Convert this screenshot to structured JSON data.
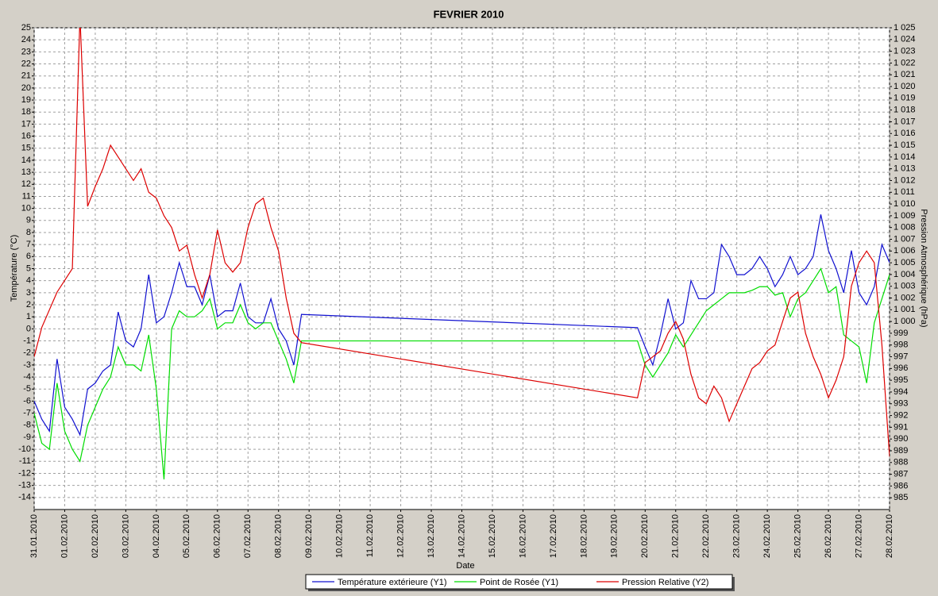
{
  "chart_data": {
    "type": "line",
    "title": "FEVRIER  2010",
    "xlabel": "Date",
    "ylabel": "Température (°C)",
    "y2label": "Pression Atmosphérique (hPa)",
    "x": [
      "2010-01-31 00:00",
      "2010-01-31 06:00",
      "2010-01-31 12:00",
      "2010-01-31 18:00",
      "2010-02-01 00:00",
      "2010-02-01 06:00",
      "2010-02-01 12:00",
      "2010-02-01 18:00",
      "2010-02-02 00:00",
      "2010-02-02 06:00",
      "2010-02-02 12:00",
      "2010-02-02 18:00",
      "2010-02-03 00:00",
      "2010-02-03 06:00",
      "2010-02-03 12:00",
      "2010-02-03 18:00",
      "2010-02-04 00:00",
      "2010-02-04 06:00",
      "2010-02-04 12:00",
      "2010-02-04 18:00",
      "2010-02-05 00:00",
      "2010-02-05 06:00",
      "2010-02-05 12:00",
      "2010-02-05 18:00",
      "2010-02-06 00:00",
      "2010-02-06 06:00",
      "2010-02-06 12:00",
      "2010-02-06 18:00",
      "2010-02-07 00:00",
      "2010-02-07 06:00",
      "2010-02-07 12:00",
      "2010-02-07 18:00",
      "2010-02-08 00:00",
      "2010-02-08 06:00",
      "2010-02-08 12:00",
      "2010-02-08 18:00",
      "2010-02-19 18:00",
      "2010-02-20 00:00",
      "2010-02-20 06:00",
      "2010-02-20 12:00",
      "2010-02-20 18:00",
      "2010-02-21 00:00",
      "2010-02-21 06:00",
      "2010-02-21 12:00",
      "2010-02-21 18:00",
      "2010-02-22 00:00",
      "2010-02-22 06:00",
      "2010-02-22 12:00",
      "2010-02-22 18:00",
      "2010-02-23 00:00",
      "2010-02-23 06:00",
      "2010-02-23 12:00",
      "2010-02-23 18:00",
      "2010-02-24 00:00",
      "2010-02-24 06:00",
      "2010-02-24 12:00",
      "2010-02-24 18:00",
      "2010-02-25 00:00",
      "2010-02-25 06:00",
      "2010-02-25 12:00",
      "2010-02-25 18:00",
      "2010-02-26 00:00",
      "2010-02-26 06:00",
      "2010-02-26 12:00",
      "2010-02-26 18:00",
      "2010-02-27 00:00",
      "2010-02-27 06:00",
      "2010-02-27 12:00",
      "2010-02-27 18:00",
      "2010-02-28 00:00"
    ],
    "series": [
      {
        "name": "Température extérieure (Y1)",
        "color": "#1010d0",
        "values": [
          -6,
          -7.5,
          -8.5,
          -2.5,
          -6.5,
          -7.5,
          -8.8,
          -5,
          -4.5,
          -3.5,
          -3,
          1.4,
          -1,
          -1.5,
          0,
          4.5,
          0.5,
          1,
          3,
          5.5,
          3.5,
          3.5,
          2,
          4.5,
          1,
          1.5,
          1.5,
          3.8,
          1,
          0.5,
          0.5,
          2.5,
          0,
          -1,
          -3,
          1.2,
          0.1,
          -1.5,
          -3,
          -0.5,
          2.5,
          0,
          0.5,
          4,
          2.5,
          2.5,
          3,
          7,
          6,
          4.5,
          4.5,
          5,
          6,
          5,
          3.5,
          4.5,
          6,
          4.5,
          5,
          6,
          9.5,
          6.5,
          5,
          3,
          6.5,
          3,
          2,
          3.5,
          7,
          5.5
        ]
      },
      {
        "name": "Point de Rosée (Y1)",
        "color": "#00dd00",
        "values": [
          -7,
          -9.5,
          -10,
          -4.5,
          -8.5,
          -10,
          -11,
          -8,
          -6.5,
          -5,
          -4,
          -1.5,
          -3,
          -3,
          -3.5,
          -0.5,
          -5,
          -12.5,
          0,
          1.5,
          1,
          1,
          1.5,
          2.5,
          0,
          0.5,
          0.5,
          2,
          0.5,
          0,
          0.5,
          0.5,
          -1,
          -2.5,
          -4.5,
          -1,
          -1,
          -3,
          -4,
          -3,
          -2,
          -0.5,
          -1.5,
          -0.5,
          0.5,
          1.5,
          2,
          2.5,
          3,
          3,
          3,
          3.2,
          3.5,
          3.5,
          2.8,
          3,
          1,
          2.5,
          3,
          4,
          5,
          3,
          3.5,
          -0.5,
          -1,
          -1.5,
          -4.5,
          0.5,
          2.5,
          4.5
        ]
      },
      {
        "name": "Pression Relative (Y2)",
        "color": "#dd0000",
        "axis": "y2",
        "values": [
          997,
          999.5,
          1001,
          1002.5,
          1003.5,
          1004.5,
          1026,
          1009.8,
          1011.5,
          1013,
          1015,
          1014,
          1013,
          1012,
          1013,
          1011,
          1010.5,
          1009,
          1008,
          1006,
          1006.5,
          1004,
          1002,
          1004,
          1007.8,
          1005,
          1004.2,
          1005,
          1008,
          1010,
          1010.5,
          1008,
          1006,
          1002,
          999,
          998.2,
          993.5,
          996.5,
          997,
          997.5,
          999,
          1000,
          998.5,
          995.5,
          993.5,
          993,
          994.5,
          993.5,
          991.5,
          993,
          994.5,
          996,
          996.5,
          997.5,
          998,
          1000,
          1002,
          1002.5,
          999,
          997,
          995.5,
          993.5,
          995,
          997,
          1003,
          1005,
          1006,
          1005,
          998,
          988.5
        ]
      }
    ],
    "xlim": [
      "2010-01-31",
      "2010-02-28"
    ],
    "xticks": [
      {
        "value": "2010-01-31",
        "label": "31.01.2010"
      },
      {
        "value": "2010-02-01",
        "label": "01.02.2010"
      },
      {
        "value": "2010-02-02",
        "label": "02.02.2010"
      },
      {
        "value": "2010-02-03",
        "label": "03.02.2010"
      },
      {
        "value": "2010-02-04",
        "label": "04.02.2010"
      },
      {
        "value": "2010-02-05",
        "label": "05.02.2010"
      },
      {
        "value": "2010-02-06",
        "label": "06.02.2010"
      },
      {
        "value": "2010-02-07",
        "label": "07.02.2010"
      },
      {
        "value": "2010-02-08",
        "label": "08.02.2010"
      },
      {
        "value": "2010-02-09",
        "label": "09.02.2010"
      },
      {
        "value": "2010-02-10",
        "label": "10.02.2010"
      },
      {
        "value": "2010-02-11",
        "label": "11.02.2010"
      },
      {
        "value": "2010-02-12",
        "label": "12.02.2010"
      },
      {
        "value": "2010-02-13",
        "label": "13.02.2010"
      },
      {
        "value": "2010-02-14",
        "label": "14.02.2010"
      },
      {
        "value": "2010-02-15",
        "label": "15.02.2010"
      },
      {
        "value": "2010-02-16",
        "label": "16.02.2010"
      },
      {
        "value": "2010-02-17",
        "label": "17.02.2010"
      },
      {
        "value": "2010-02-18",
        "label": "18.02.2010"
      },
      {
        "value": "2010-02-19",
        "label": "19.02.2010"
      },
      {
        "value": "2010-02-20",
        "label": "20.02.2010"
      },
      {
        "value": "2010-02-21",
        "label": "21.02.2010"
      },
      {
        "value": "2010-02-22",
        "label": "22.02.2010"
      },
      {
        "value": "2010-02-23",
        "label": "23.02.2010"
      },
      {
        "value": "2010-02-24",
        "label": "24.02.2010"
      },
      {
        "value": "2010-02-25",
        "label": "25.02.2010"
      },
      {
        "value": "2010-02-26",
        "label": "26.02.2010"
      },
      {
        "value": "2010-02-27",
        "label": "27.02.2010"
      },
      {
        "value": "2010-02-28",
        "label": "28.02.2010"
      }
    ],
    "ylim": [
      -15,
      25
    ],
    "yticks": [
      -14,
      -13,
      -12,
      -11,
      -10,
      -9,
      -8,
      -7,
      -6,
      -5,
      -4,
      -3,
      -2,
      -1,
      0,
      1,
      2,
      3,
      4,
      5,
      6,
      7,
      8,
      9,
      10,
      11,
      12,
      13,
      14,
      15,
      16,
      17,
      18,
      19,
      20,
      21,
      22,
      23,
      24,
      25
    ],
    "y2lim": [
      984,
      1025
    ],
    "y2ticks": [
      985,
      986,
      987,
      988,
      989,
      990,
      991,
      992,
      993,
      994,
      995,
      996,
      997,
      998,
      999,
      {
        "value": 1000,
        "label": "1 000"
      },
      {
        "value": 1001,
        "label": "1 001"
      },
      {
        "value": 1002,
        "label": "1 002"
      },
      {
        "value": 1003,
        "label": "1 003"
      },
      {
        "value": 1004,
        "label": "1 004"
      },
      {
        "value": 1005,
        "label": "1 005"
      },
      {
        "value": 1006,
        "label": "1 006"
      },
      {
        "value": 1007,
        "label": "1 007"
      },
      {
        "value": 1008,
        "label": "1 008"
      },
      {
        "value": 1009,
        "label": "1 009"
      },
      {
        "value": 1010,
        "label": "1 010"
      },
      {
        "value": 1011,
        "label": "1 011"
      },
      {
        "value": 1012,
        "label": "1 012"
      },
      {
        "value": 1013,
        "label": "1 013"
      },
      {
        "value": 1014,
        "label": "1 014"
      },
      {
        "value": 1015,
        "label": "1 015"
      },
      {
        "value": 1016,
        "label": "1 016"
      },
      {
        "value": 1017,
        "label": "1 017"
      },
      {
        "value": 1018,
        "label": "1 018"
      },
      {
        "value": 1019,
        "label": "1 019"
      },
      {
        "value": 1020,
        "label": "1 020"
      },
      {
        "value": 1021,
        "label": "1 021"
      },
      {
        "value": 1022,
        "label": "1 022"
      },
      {
        "value": 1023,
        "label": "1 023"
      },
      {
        "value": 1024,
        "label": "1 024"
      },
      {
        "value": 1025,
        "label": "1 025"
      }
    ],
    "grid": true,
    "legend": "bottom"
  }
}
